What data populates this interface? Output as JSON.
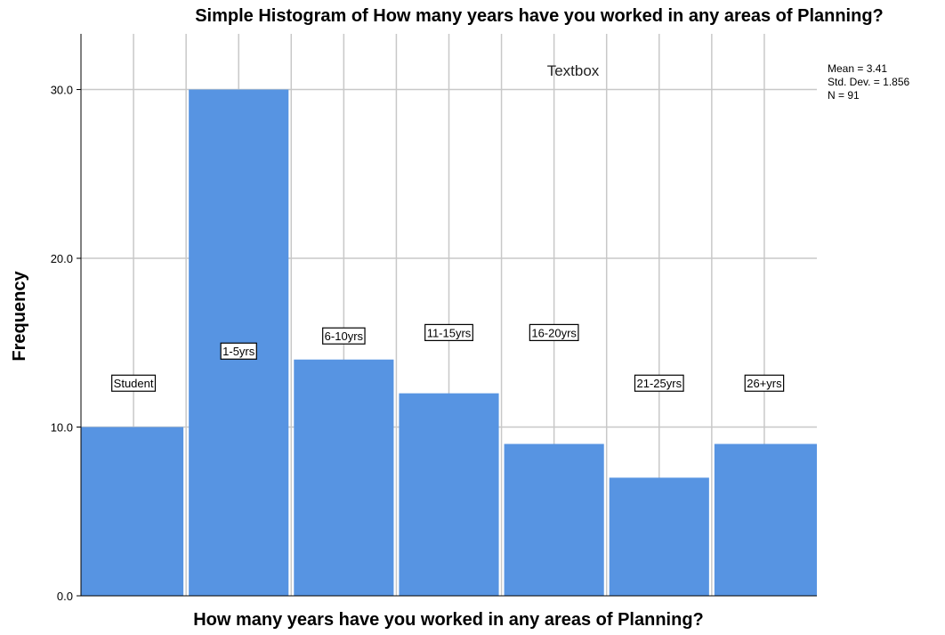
{
  "chart_data": {
    "type": "bar",
    "title": "Simple Histogram of How many years have you worked in any areas of Planning?",
    "xlabel": "How many years have you worked in any areas of Planning?",
    "ylabel": "Frequency",
    "categories": [
      "Student",
      "1-5yrs",
      "6-10yrs",
      "11-15yrs",
      "16-20yrs",
      "21-25yrs",
      "26+yrs"
    ],
    "values": [
      10,
      30,
      14,
      12,
      9,
      7,
      9
    ],
    "ylim": [
      0,
      33.3
    ],
    "yticks": [
      "0.0",
      "10.0",
      "20.0",
      "30.0"
    ],
    "ytick_values": [
      0,
      10,
      20,
      30
    ],
    "grid": true,
    "bar_color": "#5794e2",
    "annotation": "Textbox",
    "stats": [
      "Mean = 3.41",
      "Std. Dev. = 1.856",
      "N = 91"
    ],
    "label_values": [
      12.6,
      14.5,
      15.4,
      15.6,
      15.6,
      12.6,
      12.6
    ]
  }
}
